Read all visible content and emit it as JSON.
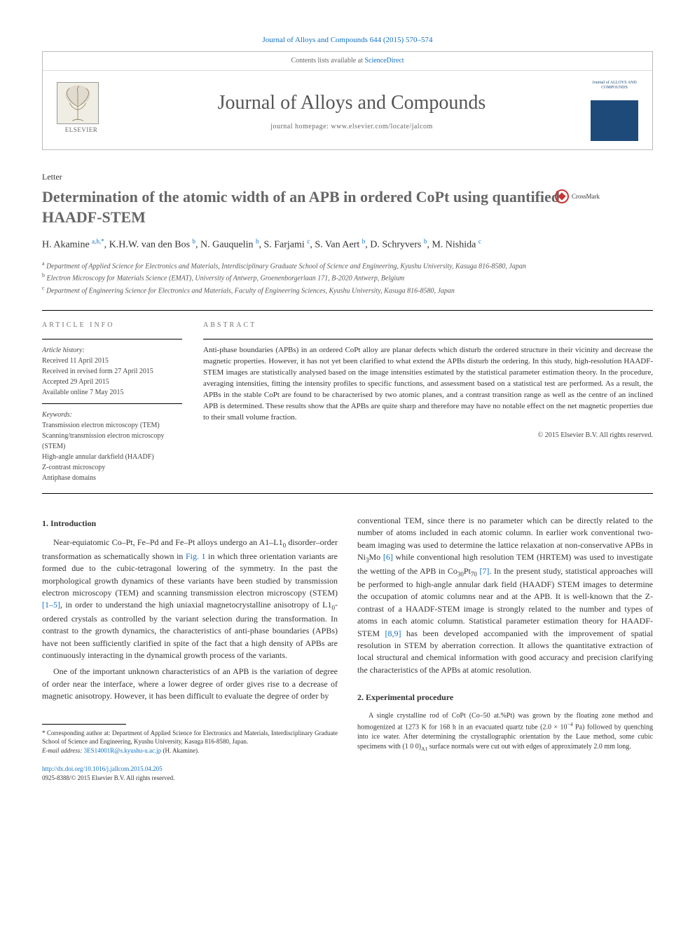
{
  "citation": "Journal of Alloys and Compounds 644 (2015) 570–574",
  "contents_line_prefix": "Contents lists available at ",
  "contents_line_link": "ScienceDirect",
  "journal_name": "Journal of Alloys and Compounds",
  "homepage_prefix": "journal homepage: ",
  "homepage_url": "www.elsevier.com/locate/jalcom",
  "publisher_logo_label": "ELSEVIER",
  "cover_thumb_label": "Journal of ALLOYS AND COMPOUNDS",
  "crossmark_label": "CrossMark",
  "letter_label": "Letter",
  "title": "Determination of the atomic width of an APB in ordered CoPt using quantified HAADF-STEM",
  "authors_html": "H. Akamine <span class='sup'>a,b,*</span>, K.H.W. van den Bos <span class='sup'>b</span>, N. Gauquelin <span class='sup'>b</span>, S. Farjami <span class='sup'>c</span>, S. Van Aert <span class='sup'>b</span>, D. Schryvers <span class='sup'>b</span>, M. Nishida <span class='sup'>c</span>",
  "affiliations": [
    "Department of Applied Science for Electronics and Materials, Interdisciplinary Graduate School of Science and Engineering, Kyushu University, Kasuga 816-8580, Japan",
    "Electron Microscopy for Materials Science (EMAT), University of Antwerp, Groenenborgerlaan 171, B-2020 Antwerp, Belgium",
    "Department of Engineering Science for Electronics and Materials, Faculty of Engineering Sciences, Kyushu University, Kasuga 816-8580, Japan"
  ],
  "affil_markers": [
    "a",
    "b",
    "c"
  ],
  "info_heading": "article info",
  "abstract_heading": "abstract",
  "history_label": "Article history:",
  "history": [
    "Received 11 April 2015",
    "Received in revised form 27 April 2015",
    "Accepted 29 April 2015",
    "Available online 7 May 2015"
  ],
  "keywords_label": "Keywords:",
  "keywords": [
    "Transmission electron microscopy (TEM)",
    "Scanning/transmission electron microscopy (STEM)",
    "High-angle annular darkfield (HAADF)",
    "Z-contrast microscopy",
    "Antiphase domains"
  ],
  "abstract": "Anti-phase boundaries (APBs) in an ordered CoPt alloy are planar defects which disturb the ordered structure in their vicinity and decrease the magnetic properties. However, it has not yet been clarified to what extend the APBs disturb the ordering. In this study, high-resolution HAADF-STEM images are statistically analysed based on the image intensities estimated by the statistical parameter estimation theory. In the procedure, averaging intensities, fitting the intensity profiles to specific functions, and assessment based on a statistical test are performed. As a result, the APBs in the stable CoPt are found to be characterised by two atomic planes, and a contrast transition range as well as the centre of an inclined APB is determined. These results show that the APBs are quite sharp and therefore may have no notable effect on the net magnetic properties due to their small volume fraction.",
  "copyright": "© 2015 Elsevier B.V. All rights reserved.",
  "sections": {
    "intro_heading": "1. Introduction",
    "intro_p1_a": "Near-equiatomic Co–Pt, Fe–Pd and Fe–Pt alloys undergo an A1–L1",
    "intro_p1_b": " disorder–order transformation as schematically shown in ",
    "intro_fig1": "Fig. 1",
    "intro_p1_c": " in which three orientation variants are formed due to the cubic-tetragonal lowering of the symmetry. In the past the morphological growth dynamics of these variants have been studied by transmission electron microscopy (TEM) and scanning transmission electron microscopy (STEM) ",
    "intro_ref1": "[1–5]",
    "intro_p1_d": ", in order to understand the high uniaxial magnetocrystalline anisotropy of L1",
    "intro_p1_e": "-ordered crystals as controlled by the variant selection during the transformation. In contrast to the growth dynamics, the characteristics of anti-phase boundaries (APBs) have not been sufficiently clarified in spite of the fact that a high density of APBs are continuously interacting in the dynamical growth process of the variants.",
    "intro_p2": "One of the important unknown characteristics of an APB is the variation of degree of order near the interface, where a lower degree of order gives rise to a decrease of magnetic anisotropy. However, it has been difficult to evaluate the degree of order by",
    "intro_col2_a": "conventional TEM, since there is no parameter which can be directly related to the number of atoms included in each atomic column. In earlier work conventional two-beam imaging was used to determine the lattice relaxation at non-conservative APBs in Ni",
    "intro_col2_b": "Mo ",
    "intro_ref6": "[6]",
    "intro_col2_c": " while conventional high resolution TEM (HRTEM) was used to investigate the wetting of the APB in Co",
    "intro_col2_d": "Pt",
    "intro_col2_e": " ",
    "intro_ref7": "[7]",
    "intro_col2_f": ". In the present study, statistical approaches will be performed to high-angle annular dark field (HAADF) STEM images to determine the occupation of atomic columns near and at the APB. It is well-known that the Z-contrast of a HAADF-STEM image is strongly related to the number and types of atoms in each atomic column. Statistical parameter estimation theory for HAADF-STEM ",
    "intro_ref89": "[8,9]",
    "intro_col2_g": " has been developed accompanied with the improvement of spatial resolution in STEM by aberration correction. It allows the quantitative extraction of local structural and chemical information with good accuracy and precision clarifying the characteristics of the APBs at atomic resolution.",
    "exp_heading": "2. Experimental procedure",
    "exp_p1_a": "A single crystalline rod of CoPt (Co–50 at.%Pt) was grown by the floating zone method and homogenized at 1273 K for 168 h in an evacuated quartz tube (2.0 × 10",
    "exp_p1_b": " Pa) followed by quenching into ice water. After determining the crystallographic orientation by the Laue method, some cubic specimens with (1 0 0)",
    "exp_p1_c": " surface normals were cut out with edges of approximately 2.0 mm long."
  },
  "footnote_corr_a": "* Corresponding author at: Department of Applied Science for Electronics and Materials, Interdisciplinary Graduate School of Science and Engineering, Kyushu University, Kasuga 816-8580, Japan.",
  "footnote_email_label": "E-mail address: ",
  "footnote_email": "3ES14001R@s.kyushu-u.ac.jp",
  "footnote_email_who": " (H. Akamine).",
  "doi_url": "http://dx.doi.org/10.1016/j.jallcom.2015.04.205",
  "issn_copyright": "0925-8388/© 2015 Elsevier B.V. All rights reserved.",
  "colors": {
    "link": "#1270c0",
    "text": "#333333",
    "muted": "#666666",
    "cover": "#1e4a7a"
  }
}
